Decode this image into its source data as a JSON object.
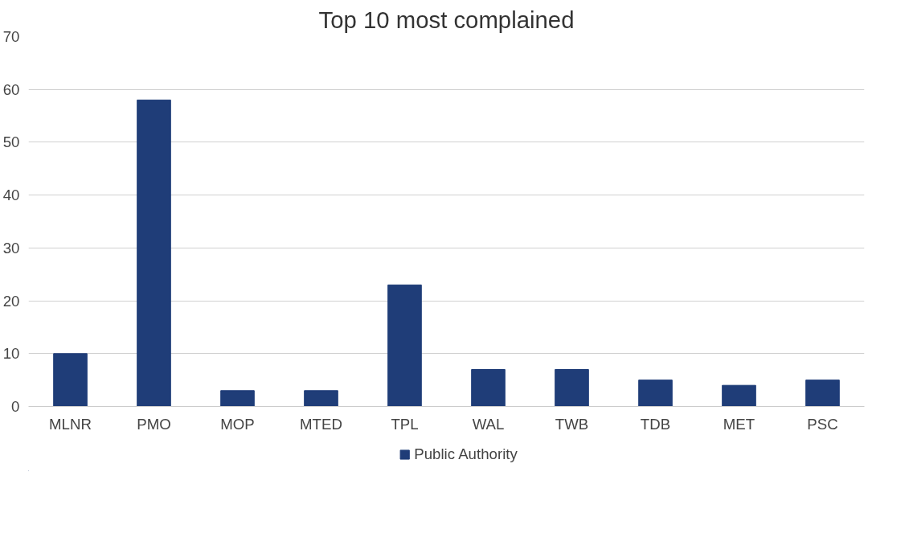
{
  "chart_data": {
    "type": "bar",
    "title": "Top 10 most complained",
    "categories": [
      "MLNR",
      "PMO",
      "MOP",
      "MTED",
      "TPL",
      "WAL",
      "TWB",
      "TDB",
      "MET",
      "PSC"
    ],
    "series": [
      {
        "name": "Public Authority",
        "color": "#1f3d78",
        "values": [
          10,
          58,
          3,
          3,
          23,
          7,
          7,
          5,
          4,
          5
        ]
      }
    ],
    "ylim": [
      0,
      70
    ],
    "yticks": [
      0,
      10,
      20,
      30,
      40,
      50,
      60,
      70
    ],
    "grid": "y",
    "legend": "bottom"
  }
}
